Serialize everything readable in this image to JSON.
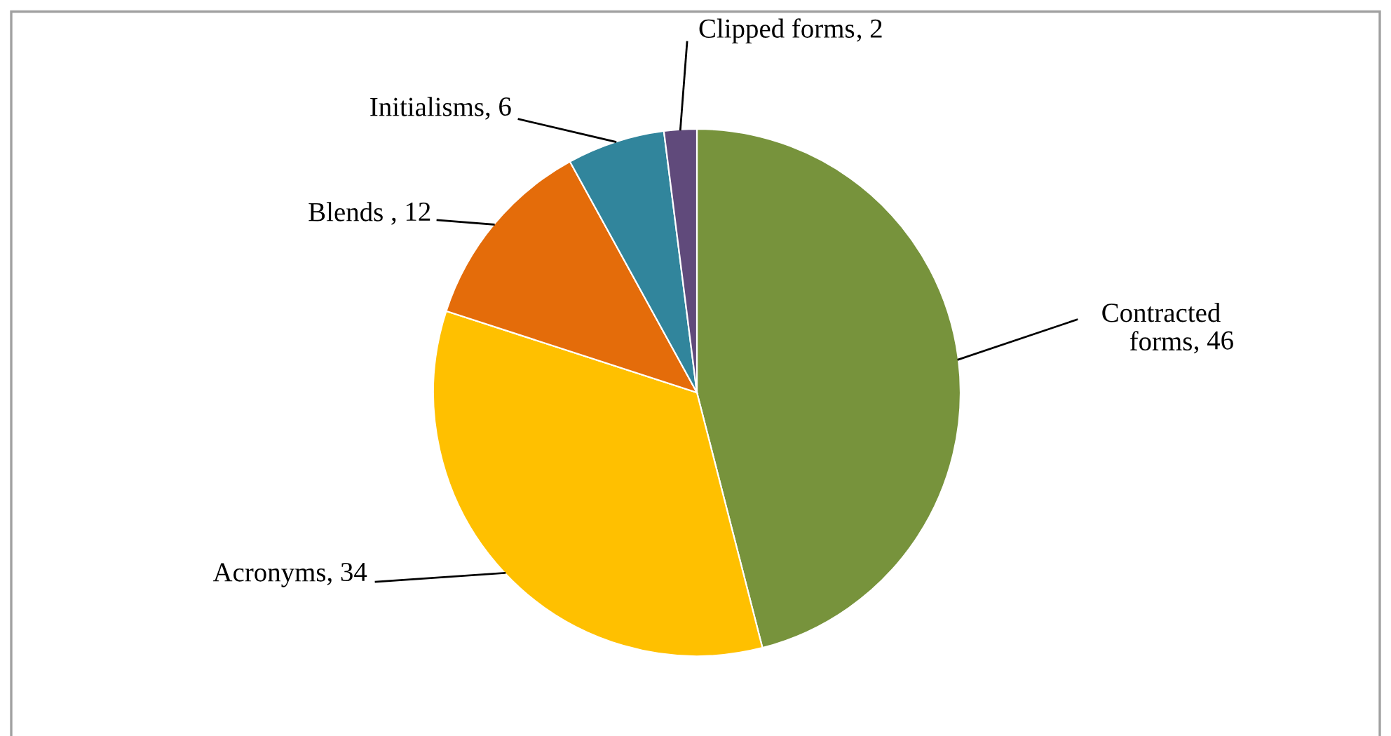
{
  "chart_data": {
    "type": "pie",
    "categories": [
      "Contracted forms",
      "Acronyms",
      "Blends ",
      "Initialisms",
      "Clipped forms"
    ],
    "values": [
      46,
      34,
      12,
      6,
      2
    ],
    "colors": [
      "#77933c",
      "#ffc000",
      "#e46c0a",
      "#31859c",
      "#604a7b"
    ],
    "value_labels": [
      ", 46",
      ", 34",
      ", 12",
      ", 6",
      ", 2"
    ],
    "legend": false
  }
}
